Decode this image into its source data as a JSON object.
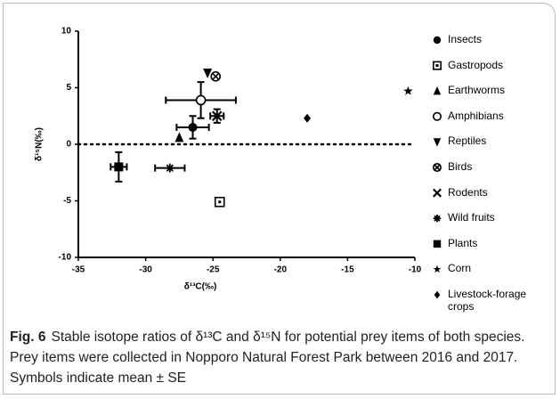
{
  "chart_data": {
    "type": "scatter",
    "xlabel": "δ¹³C(‰)",
    "ylabel": "δ¹⁵N(‰)",
    "xlim": [
      -35,
      -10
    ],
    "xticks": [
      -35,
      -30,
      -25,
      -20,
      -15,
      -10
    ],
    "ylim": [
      -10,
      10
    ],
    "yticks": [
      -10,
      -5,
      0,
      5,
      10
    ],
    "hline": 0,
    "color": "#000000",
    "series": [
      {
        "name": "Insects",
        "marker": "circle",
        "x": [
          -26.5
        ],
        "values": [
          1.5
        ],
        "x_err": [
          1.2
        ],
        "y_err": [
          1.0
        ]
      },
      {
        "name": "Gastropods",
        "marker": "square-open",
        "x": [
          -24.5
        ],
        "values": [
          -5.1
        ],
        "x_err": [
          null
        ],
        "y_err": [
          null
        ]
      },
      {
        "name": "Earthworms",
        "marker": "triangle",
        "x": [
          -27.5
        ],
        "values": [
          0.6
        ],
        "x_err": [
          null
        ],
        "y_err": [
          null
        ]
      },
      {
        "name": "Amphibians",
        "marker": "circle-open",
        "x": [
          -25.9
        ],
        "values": [
          3.9
        ],
        "x_err": [
          2.6
        ],
        "y_err": [
          1.6
        ]
      },
      {
        "name": "Reptiles",
        "marker": "triangle-down",
        "x": [
          -25.4
        ],
        "values": [
          6.3
        ],
        "x_err": [
          null
        ],
        "y_err": [
          null
        ]
      },
      {
        "name": "Birds",
        "marker": "circle-x",
        "x": [
          -24.8
        ],
        "values": [
          6.0
        ],
        "x_err": [
          null
        ],
        "y_err": [
          null
        ]
      },
      {
        "name": "Rodents",
        "marker": "x",
        "x": [
          -24.7
        ],
        "values": [
          2.5
        ],
        "x_err": [
          0.5
        ],
        "y_err": [
          0.6
        ]
      },
      {
        "name": "Wild fruits",
        "marker": "asterisk",
        "x": [
          -28.2
        ],
        "values": [
          -2.1
        ],
        "x_err": [
          1.1
        ],
        "y_err": [
          null
        ]
      },
      {
        "name": "Plants",
        "marker": "square",
        "x": [
          -32.0
        ],
        "values": [
          -2.0
        ],
        "x_err": [
          0.6
        ],
        "y_err": [
          1.3
        ]
      },
      {
        "name": "Corn",
        "marker": "star",
        "x": [
          -10.5
        ],
        "values": [
          4.7
        ],
        "x_err": [
          null
        ],
        "y_err": [
          null
        ]
      },
      {
        "name": "Livestock-forage crops",
        "marker": "diamond",
        "x": [
          -18.0
        ],
        "values": [
          2.3
        ],
        "x_err": [
          null
        ],
        "y_err": [
          null
        ]
      }
    ]
  },
  "caption": {
    "label": "Fig. 6",
    "text": "Stable isotope ratios of δ¹³C and δ¹⁵N for potential prey items of both species. Prey items were collected in Nopporo Natural Forest Park between 2016 and 2017. Symbols indicate mean ± SE"
  }
}
